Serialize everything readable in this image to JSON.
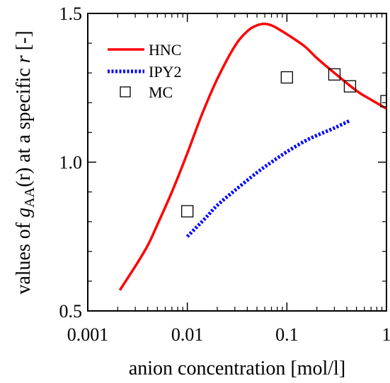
{
  "chart_data": {
    "type": "line",
    "xscale": "log",
    "xlim": [
      0.001,
      1
    ],
    "ylim": [
      0.5,
      1.5
    ],
    "xticks": [
      {
        "value": 0.001,
        "label": "0.001"
      },
      {
        "value": 0.01,
        "label": "0.01"
      },
      {
        "value": 0.1,
        "label": "0.1"
      },
      {
        "value": 1,
        "label": "1"
      }
    ],
    "yticks": [
      {
        "value": 0.5,
        "label": "0.5"
      },
      {
        "value": 1.0,
        "label": "1.0"
      },
      {
        "value": 1.5,
        "label": "1.5"
      }
    ],
    "xlabel": "anion concentration [mol/l]",
    "ylabel": {
      "prefix": "values of ",
      "symbol": "g",
      "subscript": "AA",
      "middle": "(r) at a specific ",
      "var": "r",
      "suffix": " [-]"
    },
    "grid": false,
    "legend_position": "top-left",
    "series": [
      {
        "name": "HNC",
        "style": "solid",
        "color": "#ff0000",
        "x": [
          0.0021,
          0.003,
          0.004,
          0.005,
          0.007,
          0.01,
          0.014,
          0.02,
          0.03,
          0.04,
          0.05,
          0.06,
          0.07,
          0.08,
          0.1,
          0.15,
          0.2,
          0.3,
          0.5,
          0.7,
          1.0
        ],
        "y": [
          0.57,
          0.65,
          0.72,
          0.79,
          0.9,
          1.03,
          1.16,
          1.28,
          1.39,
          1.44,
          1.46,
          1.465,
          1.46,
          1.45,
          1.43,
          1.39,
          1.35,
          1.3,
          1.24,
          1.21,
          1.18
        ]
      },
      {
        "name": "IPY2",
        "style": "dotted",
        "color": "#0000ff",
        "x": [
          0.01,
          0.015,
          0.02,
          0.03,
          0.05,
          0.07,
          0.1,
          0.15,
          0.2,
          0.3,
          0.43
        ],
        "y": [
          0.75,
          0.81,
          0.855,
          0.905,
          0.965,
          1.0,
          1.035,
          1.07,
          1.09,
          1.115,
          1.14
        ]
      },
      {
        "name": "MC",
        "style": "markers",
        "marker": "square",
        "color": "#000000",
        "x": [
          0.01,
          0.1,
          0.3,
          0.43,
          1.0
        ],
        "y": [
          0.835,
          1.285,
          1.295,
          1.255,
          1.205
        ]
      }
    ]
  }
}
